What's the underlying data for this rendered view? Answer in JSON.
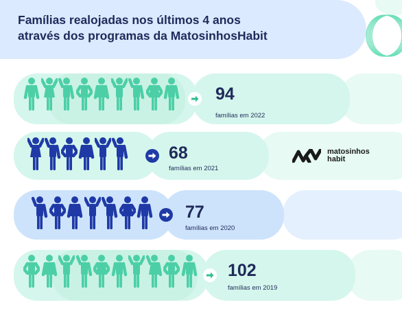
{
  "header": {
    "title": "Famílias realojadas nos últimos 4 anos\natravés dos programas da MatosinhosHabit"
  },
  "brand": {
    "text": "matosinhos\nhabit",
    "logo_icon": "mm-logo-icon"
  },
  "rows": [
    {
      "value": "94",
      "caption": "famílias em 2022",
      "figures": 9,
      "figure_color": "#4ccfa6",
      "arrow_icon": "arrow-right-icon"
    },
    {
      "value": "68",
      "caption": "famílias em 2021",
      "figures": 6,
      "figure_color": "#1f3aa6",
      "arrow_icon": "arrow-right-icon"
    },
    {
      "value": "77",
      "caption": "famílias em 2020",
      "figures": 7,
      "figure_color": "#1f3aa6",
      "arrow_icon": "arrow-right-icon"
    },
    {
      "value": "102",
      "caption": "famílias em 2019",
      "figures": 10,
      "figure_color": "#4ccfa6",
      "arrow_icon": "arrow-right-icon"
    }
  ],
  "colors": {
    "title_band": "#dbeafe",
    "mint": "#d5f6ec",
    "mint_light": "#e7faf3",
    "blue": "#cde3fb",
    "blue_light": "#e4f0fd",
    "text": "#1f2a5a"
  }
}
